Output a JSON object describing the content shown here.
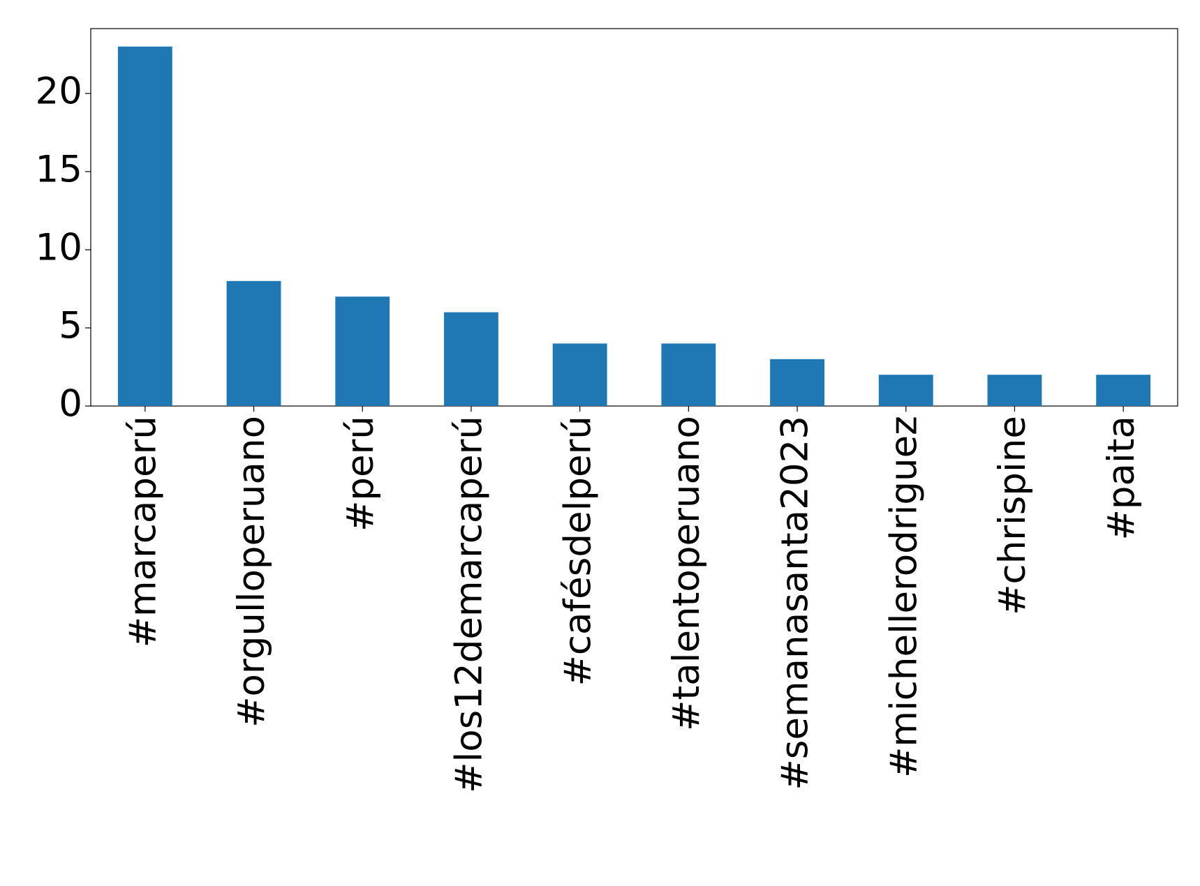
{
  "chart_data": {
    "type": "bar",
    "categories": [
      "#marcaperú",
      "#orgulloperuano",
      "#perú",
      "#los12demarcaperú",
      "#cafésdelperú",
      "#talentoperuano",
      "#semanasanta2023",
      "#michellerodriguez",
      "#chrispine",
      "#paita"
    ],
    "values": [
      23,
      8,
      7,
      6,
      4,
      4,
      3,
      2,
      2,
      2
    ],
    "color": "#1f77b4",
    "ylim": [
      0,
      24.15
    ],
    "yticks": [
      0,
      5,
      10,
      15,
      20
    ],
    "grid": false
  }
}
